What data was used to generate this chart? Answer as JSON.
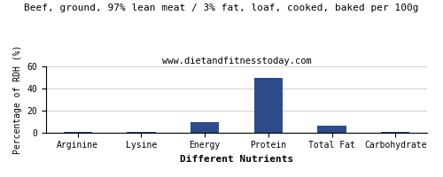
{
  "title": "Beef, ground, 97% lean meat / 3% fat, loaf, cooked, baked per 100g",
  "subtitle": "www.dietandfitnesstoday.com",
  "xlabel": "Different Nutrients",
  "ylabel": "Percentage of RDH (%)",
  "categories": [
    "Arginine",
    "Lysine",
    "Energy",
    "Protein",
    "Total Fat",
    "Carbohydrate"
  ],
  "values": [
    0.5,
    0.8,
    9.0,
    49.5,
    6.5,
    0.3
  ],
  "bar_color": "#2e4b8a",
  "ylim": [
    0,
    60
  ],
  "yticks": [
    0,
    20,
    40,
    60
  ],
  "background_color": "#ffffff",
  "grid_color": "#d0d0d0",
  "title_fontsize": 8.0,
  "subtitle_fontsize": 7.5,
  "xlabel_fontsize": 8,
  "ylabel_fontsize": 7,
  "tick_fontsize": 7,
  "xlabel_fontweight": "bold"
}
